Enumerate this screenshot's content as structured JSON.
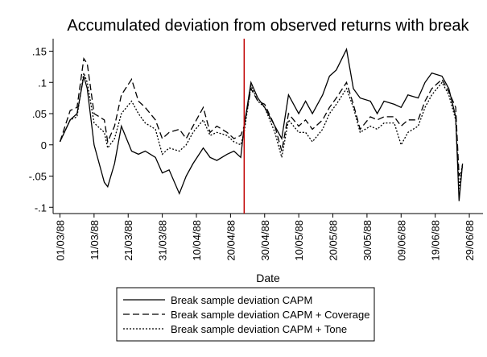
{
  "chart_data": {
    "type": "line",
    "title": "Accumulated deviation from observed returns with break",
    "xlabel": "Date",
    "x": [
      "1988-03-01",
      "1988-03-04",
      "1988-03-06",
      "1988-03-08",
      "1988-03-09",
      "1988-03-11",
      "1988-03-14",
      "1988-03-15",
      "1988-03-17",
      "1988-03-19",
      "1988-03-22",
      "1988-03-24",
      "1988-03-26",
      "1988-03-29",
      "1988-03-31",
      "1988-04-02",
      "1988-04-05",
      "1988-04-07",
      "1988-04-09",
      "1988-04-12",
      "1988-04-14",
      "1988-04-16",
      "1988-04-19",
      "1988-04-21",
      "1988-04-23",
      "1988-04-24",
      "1988-04-26",
      "1988-04-28",
      "1988-04-30",
      "1988-05-03",
      "1988-05-05",
      "1988-05-07",
      "1988-05-10",
      "1988-05-12",
      "1988-05-14",
      "1988-05-17",
      "1988-05-19",
      "1988-05-21",
      "1988-05-24",
      "1988-05-26",
      "1988-05-28",
      "1988-05-31",
      "1988-06-02",
      "1988-06-04",
      "1988-06-07",
      "1988-06-09",
      "1988-06-11",
      "1988-06-14",
      "1988-06-16",
      "1988-06-18",
      "1988-06-21",
      "1988-06-23",
      "1988-06-25",
      "1988-06-26",
      "1988-06-27"
    ],
    "series": [
      {
        "name": "Break sample deviation CAPM",
        "color": "#000000",
        "style": "solid",
        "values": [
          0.005,
          0.04,
          0.05,
          0.11,
          0.09,
          0,
          -0.06,
          -0.067,
          -0.03,
          0.03,
          -0.01,
          -0.015,
          -0.01,
          -0.02,
          -0.045,
          -0.04,
          -0.078,
          -0.05,
          -0.03,
          -0.005,
          -0.02,
          -0.025,
          -0.015,
          -0.01,
          -0.02,
          0.03,
          0.1,
          0.075,
          0.06,
          0.03,
          0.01,
          0.08,
          0.05,
          0.07,
          0.05,
          0.08,
          0.11,
          0.12,
          0.153,
          0.09,
          0.075,
          0.07,
          0.05,
          0.07,
          0.065,
          0.06,
          0.08,
          0.075,
          0.1,
          0.115,
          0.11,
          0.09,
          0.045,
          -0.09,
          -0.03
        ]
      },
      {
        "name": "Break sample deviation CAPM + Coverage",
        "color": "#000000",
        "style": "dashed",
        "values": [
          0.005,
          0.055,
          0.06,
          0.138,
          0.13,
          0.05,
          0.04,
          0.005,
          0.03,
          0.08,
          0.105,
          0.07,
          0.06,
          0.04,
          0.01,
          0.02,
          0.025,
          0.01,
          0.03,
          0.06,
          0.02,
          0.03,
          0.02,
          0.01,
          0.015,
          0.03,
          0.09,
          0.07,
          0.065,
          0.03,
          -0.01,
          0.05,
          0.03,
          0.04,
          0.025,
          0.04,
          0.06,
          0.075,
          0.1,
          0.065,
          0.025,
          0.045,
          0.04,
          0.045,
          0.045,
          0.03,
          0.04,
          0.04,
          0.07,
          0.09,
          0.105,
          0.085,
          0.06,
          -0.05,
          -0.035
        ]
      },
      {
        "name": "Break sample deviation CAPM + Tone",
        "color": "#000000",
        "style": "dotted",
        "values": [
          0.005,
          0.04,
          0.045,
          0.115,
          0.1,
          0.035,
          0.02,
          -0.005,
          0.01,
          0.05,
          0.07,
          0.05,
          0.035,
          0.025,
          -0.015,
          -0.005,
          -0.01,
          0,
          0.02,
          0.04,
          0.015,
          0.02,
          0.015,
          0.005,
          0,
          0.02,
          0.095,
          0.07,
          0.06,
          0.02,
          -0.02,
          0.04,
          0.02,
          0.02,
          0.005,
          0.025,
          0.05,
          0.065,
          0.09,
          0.06,
          0.02,
          0.03,
          0.025,
          0.035,
          0.035,
          0,
          0.02,
          0.03,
          0.06,
          0.08,
          0.1,
          0.08,
          0.04,
          -0.07,
          -0.03
        ]
      }
    ],
    "break_x": "1988-04-24",
    "break_color": "#c00000",
    "xlim": [
      "1988-02-28",
      "1988-07-03"
    ],
    "xticks": [
      {
        "value": "1988-03-01",
        "label": "01/03/88"
      },
      {
        "value": "1988-03-11",
        "label": "11/03/88"
      },
      {
        "value": "1988-03-21",
        "label": "21/03/88"
      },
      {
        "value": "1988-03-31",
        "label": "31/03/88"
      },
      {
        "value": "1988-04-10",
        "label": "10/04/88"
      },
      {
        "value": "1988-04-20",
        "label": "20/04/88"
      },
      {
        "value": "1988-04-30",
        "label": "30/04/88"
      },
      {
        "value": "1988-05-10",
        "label": "10/05/88"
      },
      {
        "value": "1988-05-20",
        "label": "20/05/88"
      },
      {
        "value": "1988-05-30",
        "label": "30/05/88"
      },
      {
        "value": "1988-06-09",
        "label": "09/06/88"
      },
      {
        "value": "1988-06-19",
        "label": "19/06/88"
      },
      {
        "value": "1988-06-29",
        "label": "29/06/88"
      }
    ],
    "ylim": [
      -0.11,
      0.17
    ],
    "yticks": [
      {
        "value": -0.1,
        "label": "-.1"
      },
      {
        "value": -0.05,
        "label": "-.05"
      },
      0,
      {
        "value": 0.05,
        "label": ".05"
      },
      {
        "value": 0.1,
        "label": ".1"
      },
      {
        "value": 0.15,
        "label": ".15"
      }
    ],
    "legend": "bottom"
  }
}
